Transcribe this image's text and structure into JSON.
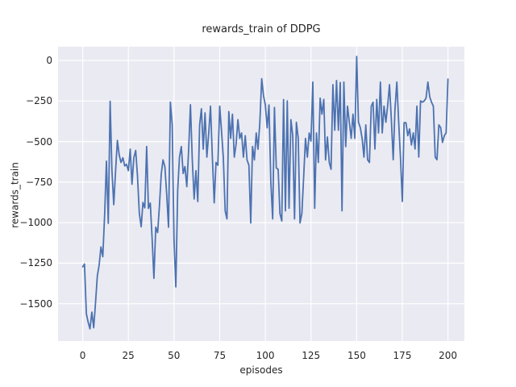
{
  "figure": {
    "background": "#ffffff"
  },
  "chart_data": {
    "type": "line",
    "title": "rewards_train of DDPG",
    "xlabel": "episodes",
    "ylabel": "rewards_train",
    "x_ticks": [
      0,
      25,
      50,
      75,
      100,
      125,
      150,
      175,
      200
    ],
    "x_tick_labels": [
      "0",
      "25",
      "50",
      "75",
      "100",
      "125",
      "150",
      "175",
      "200"
    ],
    "y_ticks": [
      0,
      -250,
      -500,
      -750,
      -1000,
      -1250,
      -1500
    ],
    "y_tick_labels": [
      "0",
      "−250",
      "−500",
      "−750",
      "−1000",
      "−1250",
      "−1500"
    ],
    "xlim": [
      -13.5,
      209.0
    ],
    "ylim": [
      -1730,
      84.5
    ],
    "grid": true,
    "legend_position": "none",
    "style": {
      "axes_bg": "#EAEAF2",
      "grid_color": "#FFFFFF",
      "line_color": "#4C72B0",
      "text_color": "#262626"
    },
    "series": [
      {
        "name": "rewards_train",
        "x_start": 0,
        "x_step": 1,
        "values": [
          -1272,
          -1255,
          -1560,
          -1615,
          -1655,
          -1552,
          -1648,
          -1500,
          -1330,
          -1260,
          -1150,
          -1210,
          -950,
          -621,
          -1004,
          -252,
          -675,
          -889,
          -675,
          -493,
          -584,
          -629,
          -600,
          -650,
          -640,
          -679,
          -547,
          -763,
          -600,
          -555,
          -711,
          -942,
          -1025,
          -876,
          -909,
          -531,
          -912,
          -879,
          -1100,
          -1343,
          -1028,
          -1061,
          -900,
          -700,
          -613,
          -655,
          -829,
          -1028,
          -257,
          -398,
          -1100,
          -1396,
          -800,
          -597,
          -531,
          -697,
          -654,
          -778,
          -550,
          -273,
          -613,
          -854,
          -679,
          -870,
          -398,
          -298,
          -547,
          -323,
          -596,
          -447,
          -282,
          -596,
          -878,
          -629,
          -646,
          -282,
          -430,
          -600,
          -928,
          -977,
          -315,
          -480,
          -331,
          -596,
          -513,
          -365,
          -480,
          -447,
          -596,
          -464,
          -613,
          -646,
          -1002,
          -531,
          -613,
          -447,
          -547,
          -381,
          -113,
          -216,
          -274,
          -415,
          -274,
          -746,
          -977,
          -290,
          -663,
          -671,
          -944,
          -990,
          -241,
          -927,
          -249,
          -911,
          -365,
          -464,
          -977,
          -381,
          -480,
          -1002,
          -944,
          -712,
          -480,
          -596,
          -447,
          -497,
          -133,
          -911,
          -447,
          -629,
          -232,
          -331,
          -240,
          -613,
          -472,
          -629,
          -671,
          -149,
          -430,
          -124,
          -430,
          -136,
          -927,
          -133,
          -531,
          -282,
          -381,
          -480,
          -331,
          -480,
          25,
          -381,
          -414,
          -483,
          -596,
          -397,
          -612,
          -629,
          -282,
          -257,
          -546,
          -240,
          -447,
          -133,
          -447,
          -282,
          -381,
          -274,
          -149,
          -365,
          -612,
          -298,
          -133,
          -381,
          -596,
          -869,
          -384,
          -384,
          -464,
          -422,
          -521,
          -447,
          -546,
          -282,
          -596,
          -249,
          -257,
          -249,
          -232,
          -133,
          -224,
          -257,
          -282,
          -596,
          -612,
          -397,
          -414,
          -505,
          -464,
          -447,
          -115
        ]
      }
    ]
  }
}
